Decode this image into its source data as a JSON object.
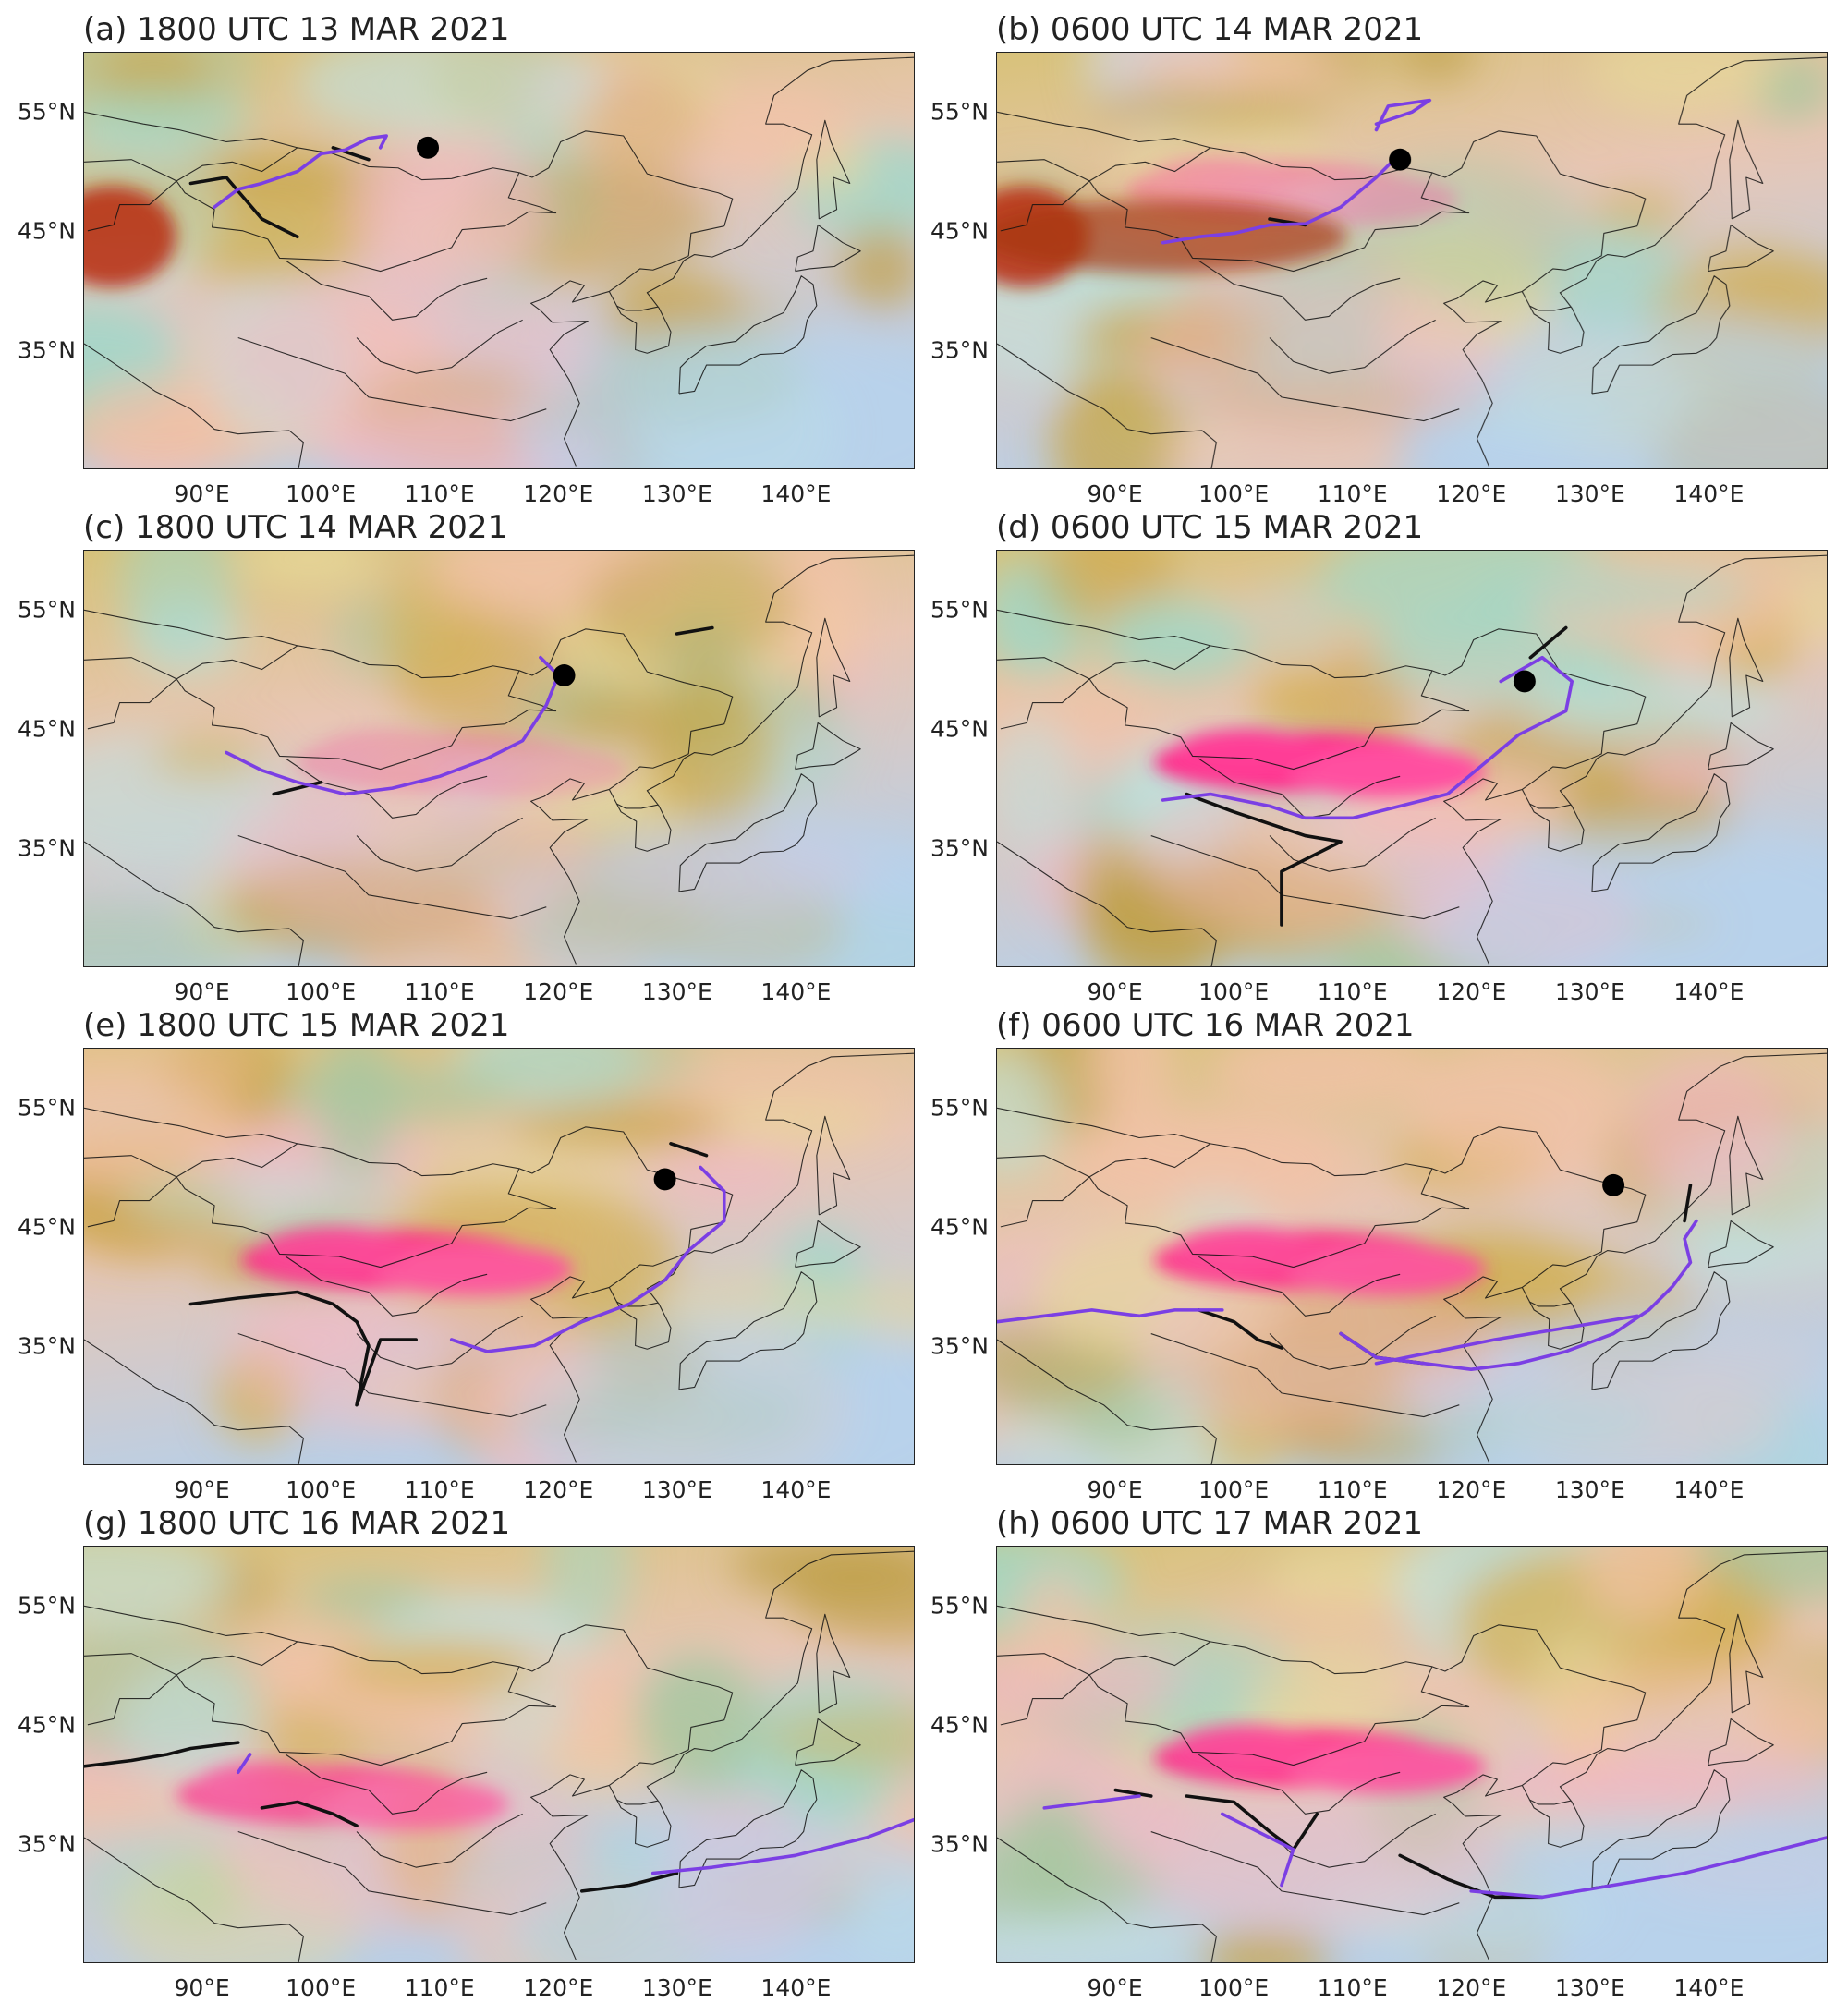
{
  "figure": {
    "panels": [
      {
        "id": "a",
        "title": "(a) 1800 UTC 13 MAR 2021",
        "has_low_center": true,
        "low_center": [
          109,
          52
        ],
        "pink_intensity": 0.0
      },
      {
        "id": "b",
        "title": "(b) 0600 UTC 14 MAR 2021",
        "has_low_center": true,
        "low_center": [
          114,
          51
        ],
        "pink_intensity": 0.35
      },
      {
        "id": "c",
        "title": "(c) 1800 UTC 14 MAR 2021",
        "has_low_center": true,
        "low_center": [
          120.5,
          49.5
        ],
        "pink_intensity": 0.25
      },
      {
        "id": "d",
        "title": "(d) 0600 UTC 15 MAR 2021",
        "has_low_center": true,
        "low_center": [
          124.5,
          49
        ],
        "pink_intensity": 1.0
      },
      {
        "id": "e",
        "title": "(e) 1800 UTC 15 MAR 2021",
        "has_low_center": true,
        "low_center": [
          129,
          49
        ],
        "pink_intensity": 0.9
      },
      {
        "id": "f",
        "title": "(f) 0600 UTC 16 MAR 2021",
        "has_low_center": true,
        "low_center": [
          132,
          48.5
        ],
        "pink_intensity": 0.9
      },
      {
        "id": "g",
        "title": "(g) 1800 UTC 16 MAR 2021",
        "has_low_center": false,
        "low_center": null,
        "pink_intensity": 0.7
      },
      {
        "id": "h",
        "title": "(h) 0600 UTC 17 MAR 2021",
        "has_low_center": false,
        "low_center": null,
        "pink_intensity": 0.9
      }
    ],
    "lat_ticks": [
      "55°N",
      "45°N",
      "35°N"
    ],
    "lat_values": [
      55,
      45,
      35
    ],
    "lon_ticks": [
      "90°E",
      "100°E",
      "110°E",
      "120°E",
      "130°E",
      "140°E"
    ],
    "lon_values": [
      90,
      100,
      110,
      120,
      130,
      140
    ],
    "map_extent": {
      "lon": [
        80,
        150
      ],
      "lat": [
        25,
        60
      ]
    },
    "line_colors": {
      "front_purple": "#7b3fe4",
      "front_black": "#111111",
      "dust_pink": "#ff2a8a",
      "cloud_orange": "#c8a04a"
    }
  }
}
